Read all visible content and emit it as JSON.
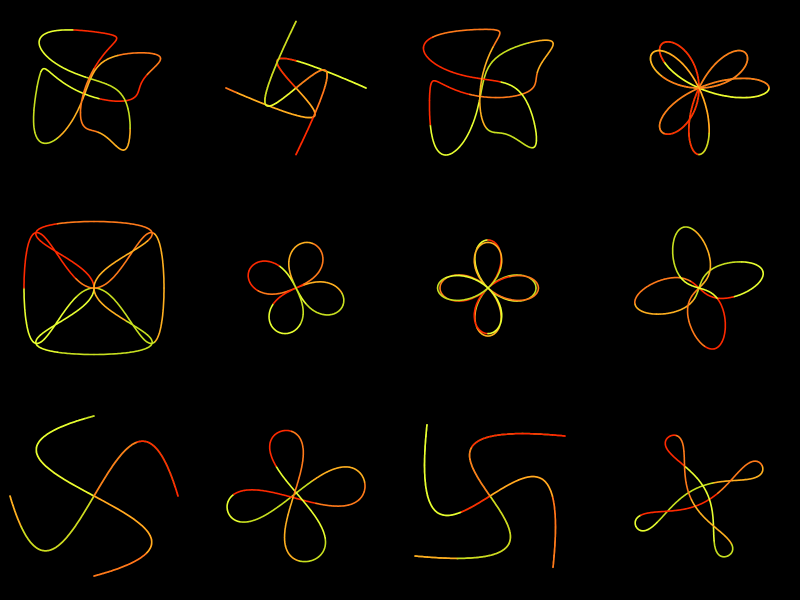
{
  "palette": {
    "background": "#000000",
    "colors": [
      "#ff2a00",
      "#ff7a1a",
      "#ffb020",
      "#c8e020",
      "#e8ff30"
    ]
  },
  "figures": [
    {
      "name": "figure-1",
      "shape": "looped-rotated"
    },
    {
      "name": "figure-2",
      "shape": "butterfly"
    },
    {
      "name": "figure-3",
      "shape": "looped-rotated"
    },
    {
      "name": "figure-4",
      "shape": "six-petal-star"
    },
    {
      "name": "figure-5",
      "shape": "petal-pairs"
    },
    {
      "name": "figure-6",
      "shape": "lemniscate"
    },
    {
      "name": "figure-7",
      "shape": "rose"
    },
    {
      "name": "figure-8",
      "shape": "tilted-ellipses"
    },
    {
      "name": "figure-9",
      "shape": "vertical-cross"
    },
    {
      "name": "figure-10",
      "shape": "looped-slim"
    },
    {
      "name": "figure-11",
      "shape": "butterfly-loop"
    },
    {
      "name": "figure-12",
      "shape": "narrow-ellipses"
    }
  ]
}
